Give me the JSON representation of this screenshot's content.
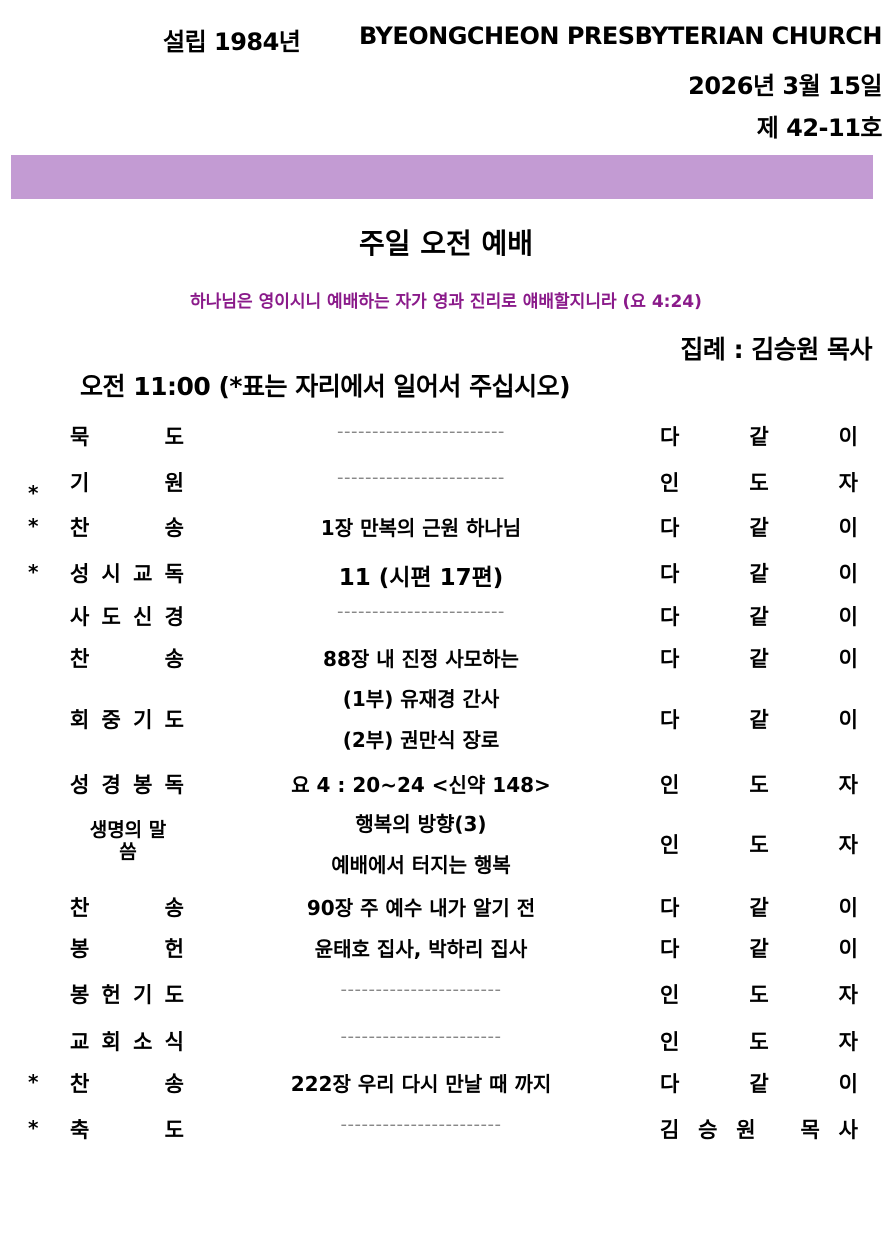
{
  "header": {
    "founded": "설립 1984년",
    "church_name": "BYEONGCHEON PRESBYTERIAN CHURCH",
    "date": "2026년 3월 15일",
    "issue": "제 42-11호"
  },
  "colors": {
    "band": "#c39bd3",
    "verse": "#8a1a8a"
  },
  "service": {
    "title": "주일 오전 예배",
    "verse": "하나님은 영이시니 예배하는 자가 영과 진리로 얘배할지니라 (요 4:24)",
    "officiant": "집례 : 김승원 목사",
    "time_note": "오전 11:00 (*표는 자리에서 일어서 주십시오)"
  },
  "order": [
    {
      "star": false,
      "label": "묵도",
      "content": [
        "------------------------"
      ],
      "dash": true,
      "by": "다같이"
    },
    {
      "star": true,
      "star_low": true,
      "label": "기원",
      "content": [
        "------------------------"
      ],
      "dash": true,
      "by": "인도자"
    },
    {
      "star": true,
      "label": "찬송",
      "content": [
        "1장 만복의 근원 하나님"
      ],
      "by": "다같이"
    },
    {
      "star": true,
      "label": "성시교독",
      "content": [
        "11 (시편 17편)"
      ],
      "big": true,
      "by": "다같이"
    },
    {
      "star": false,
      "label": "사도신경",
      "content": [
        "------------------------"
      ],
      "dash": true,
      "by": "다같이"
    },
    {
      "star": false,
      "label": "찬송",
      "content": [
        "88장 내 진정 사모하는"
      ],
      "by": "다같이"
    },
    {
      "star": false,
      "label": "회중기도",
      "content": [
        "(1부) 유재경 간사",
        "(2부) 권만식 장로"
      ],
      "by": "다같이"
    },
    {
      "star": false,
      "label": "성경봉독",
      "content": [
        "요 4 : 20~24 <신약 148>"
      ],
      "by": "인도자"
    },
    {
      "star": false,
      "label": "생명의 말씀",
      "stacked": true,
      "content": [
        "행복의 방향(3)",
        "예배에서 터지는 행복"
      ],
      "by": "인도자"
    },
    {
      "star": false,
      "label": "찬송",
      "content": [
        "90장 주 예수 내가 알기 전"
      ],
      "by": "다같이"
    },
    {
      "star": false,
      "label": "봉헌",
      "content": [
        "윤태호 집사, 박하리 집사"
      ],
      "by": "다같이"
    },
    {
      "star": false,
      "label": "봉헌기도",
      "content": [
        "-----------------------"
      ],
      "dash": true,
      "by": "인도자"
    },
    {
      "star": false,
      "label": "교회소식",
      "content": [
        "-----------------------"
      ],
      "dash": true,
      "by": "인도자"
    },
    {
      "star": true,
      "label": "찬송",
      "content": [
        "222장 우리 다시 만날 때 까지"
      ],
      "by": "다같이"
    },
    {
      "star": true,
      "label": "축도",
      "content": [
        "-----------------------"
      ],
      "dash": true,
      "by": "김승원 목사",
      "by_name": true
    }
  ],
  "star_symbol": "*"
}
